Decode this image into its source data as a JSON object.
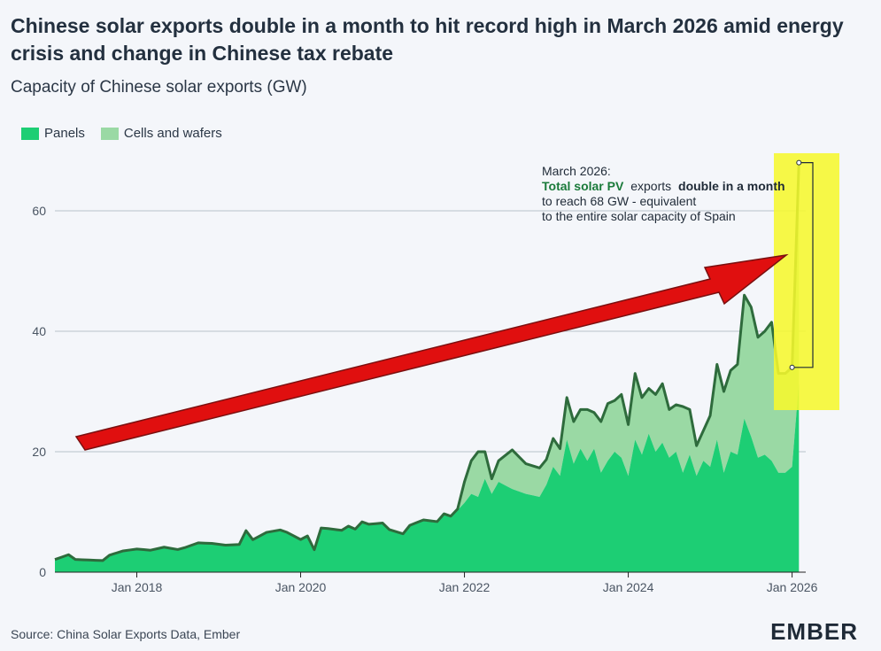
{
  "header": {
    "title": "Chinese solar exports double in a month to hit record high in March 2026 amid energy crisis and change in Chinese tax rebate",
    "subtitle": "Capacity of Chinese solar exports (GW)"
  },
  "footer": {
    "source": "Source: China Solar Exports Data, Ember",
    "logo": "EMBER"
  },
  "colors": {
    "panels": "#1dce74",
    "cells_and_wafers": "#9ad9a4",
    "total_line": "#2e6b3c",
    "highlight": "#f6f82d",
    "arrow": "#e00f0f",
    "annotation_accent": "#1a7a3a",
    "grid": "#b9c1cb"
  },
  "chart_data": {
    "type": "area",
    "title": "Capacity of Chinese solar exports (GW)",
    "ylabel": "",
    "ylim": [
      0,
      70
    ],
    "yticks": [
      0,
      20,
      40,
      60
    ],
    "xlim": [
      "2017-01",
      "2026-03"
    ],
    "xticks": [
      {
        "date": "2018-01",
        "label": "Jan 2018"
      },
      {
        "date": "2020-01",
        "label": "Jan 2020"
      },
      {
        "date": "2022-01",
        "label": "Jan 2022"
      },
      {
        "date": "2024-01",
        "label": "Jan 2024"
      },
      {
        "date": "2026-01",
        "label": "Jan 2026"
      }
    ],
    "legend": "top-left",
    "grid": true,
    "stacked": true,
    "series": [
      {
        "name": "Panels",
        "points": [
          [
            "2017-01",
            2.1
          ],
          [
            "2017-03",
            2.9
          ],
          [
            "2017-04",
            2.1
          ],
          [
            "2017-06",
            2.0
          ],
          [
            "2017-08",
            1.9
          ],
          [
            "2017-09",
            2.8
          ],
          [
            "2017-11",
            3.5
          ],
          [
            "2018-01",
            3.8
          ],
          [
            "2018-03",
            3.6
          ],
          [
            "2018-05",
            4.1
          ],
          [
            "2018-07",
            3.7
          ],
          [
            "2018-08",
            4.0
          ],
          [
            "2018-10",
            4.8
          ],
          [
            "2018-12",
            4.7
          ],
          [
            "2019-02",
            4.4
          ],
          [
            "2019-04",
            4.5
          ],
          [
            "2019-05",
            6.8
          ],
          [
            "2019-06",
            5.3
          ],
          [
            "2019-08",
            6.5
          ],
          [
            "2019-10",
            6.9
          ],
          [
            "2019-11",
            6.5
          ],
          [
            "2020-01",
            5.3
          ],
          [
            "2020-02",
            5.9
          ],
          [
            "2020-03",
            3.6
          ],
          [
            "2020-04",
            7.2
          ],
          [
            "2020-05",
            7.1
          ],
          [
            "2020-07",
            6.8
          ],
          [
            "2020-08",
            7.5
          ],
          [
            "2020-09",
            7.0
          ],
          [
            "2020-10",
            8.2
          ],
          [
            "2020-11",
            7.8
          ],
          [
            "2021-01",
            8.0
          ],
          [
            "2021-02",
            6.9
          ],
          [
            "2021-04",
            6.2
          ],
          [
            "2021-05",
            7.6
          ],
          [
            "2021-07",
            8.5
          ],
          [
            "2021-09",
            8.2
          ],
          [
            "2021-10",
            9.5
          ],
          [
            "2021-11",
            9.1
          ],
          [
            "2021-12",
            10.3
          ],
          [
            "2022-01",
            11.5
          ],
          [
            "2022-02",
            13.0
          ],
          [
            "2022-03",
            12.5
          ],
          [
            "2022-04",
            15.5
          ],
          [
            "2022-05",
            13.0
          ],
          [
            "2022-06",
            15.0
          ],
          [
            "2022-08",
            13.8
          ],
          [
            "2022-10",
            13.0
          ],
          [
            "2022-12",
            12.5
          ],
          [
            "2023-01",
            14.5
          ],
          [
            "2023-02",
            17.5
          ],
          [
            "2023-03",
            16.0
          ],
          [
            "2023-04",
            22.0
          ],
          [
            "2023-05",
            18.0
          ],
          [
            "2023-06",
            20.5
          ],
          [
            "2023-07",
            18.5
          ],
          [
            "2023-08",
            20.5
          ],
          [
            "2023-09",
            16.5
          ],
          [
            "2023-10",
            18.5
          ],
          [
            "2023-11",
            20.0
          ],
          [
            "2023-12",
            19.0
          ],
          [
            "2024-01",
            16.0
          ],
          [
            "2024-02",
            22.0
          ],
          [
            "2024-03",
            19.5
          ],
          [
            "2024-04",
            23.0
          ],
          [
            "2024-05",
            20.0
          ],
          [
            "2024-06",
            21.5
          ],
          [
            "2024-07",
            19.0
          ],
          [
            "2024-08",
            20.0
          ],
          [
            "2024-09",
            16.5
          ],
          [
            "2024-10",
            19.5
          ],
          [
            "2024-11",
            16.0
          ],
          [
            "2024-12",
            18.5
          ],
          [
            "2025-01",
            17.5
          ],
          [
            "2025-02",
            22.0
          ],
          [
            "2025-03",
            16.5
          ],
          [
            "2025-04",
            20.0
          ],
          [
            "2025-05",
            19.5
          ],
          [
            "2025-06",
            25.5
          ],
          [
            "2025-07",
            22.5
          ],
          [
            "2025-08",
            19.0
          ],
          [
            "2025-09",
            19.5
          ],
          [
            "2025-10",
            18.5
          ],
          [
            "2025-11",
            16.5
          ],
          [
            "2025-12",
            16.5
          ],
          [
            "2026-01",
            17.5
          ],
          [
            "2026-02",
            31.5
          ]
        ]
      },
      {
        "name": "Cells and wafers",
        "points": [
          [
            "2017-01",
            0
          ],
          [
            "2021-12",
            0.2
          ],
          [
            "2022-01",
            3.5
          ],
          [
            "2022-02",
            5.5
          ],
          [
            "2022-03",
            7.5
          ],
          [
            "2022-04",
            4.5
          ],
          [
            "2022-05",
            2.5
          ],
          [
            "2022-06",
            3.5
          ],
          [
            "2022-08",
            6.5
          ],
          [
            "2022-10",
            5.0
          ],
          [
            "2022-12",
            4.8
          ],
          [
            "2023-01",
            4.2
          ],
          [
            "2023-02",
            4.7
          ],
          [
            "2023-03",
            4.5
          ],
          [
            "2023-04",
            7.0
          ],
          [
            "2023-05",
            7.0
          ],
          [
            "2023-06",
            6.5
          ],
          [
            "2023-07",
            8.5
          ],
          [
            "2023-08",
            6.0
          ],
          [
            "2023-09",
            8.5
          ],
          [
            "2023-10",
            9.5
          ],
          [
            "2023-11",
            8.5
          ],
          [
            "2023-12",
            10.5
          ],
          [
            "2024-01",
            8.5
          ],
          [
            "2024-02",
            11.0
          ],
          [
            "2024-03",
            9.5
          ],
          [
            "2024-04",
            7.5
          ],
          [
            "2024-05",
            9.5
          ],
          [
            "2024-06",
            9.8
          ],
          [
            "2024-07",
            8.0
          ],
          [
            "2024-08",
            7.8
          ],
          [
            "2024-09",
            11.0
          ],
          [
            "2024-10",
            7.5
          ],
          [
            "2024-11",
            5.0
          ],
          [
            "2024-12",
            5.0
          ],
          [
            "2025-01",
            8.5
          ],
          [
            "2025-02",
            12.5
          ],
          [
            "2025-03",
            13.5
          ],
          [
            "2025-04",
            13.5
          ],
          [
            "2025-05",
            15.0
          ],
          [
            "2025-06",
            20.5
          ],
          [
            "2025-07",
            21.5
          ],
          [
            "2025-08",
            20.0
          ],
          [
            "2025-09",
            20.5
          ],
          [
            "2025-10",
            23.0
          ],
          [
            "2025-11",
            16.5
          ],
          [
            "2025-12",
            16.5
          ],
          [
            "2026-01",
            16.5
          ],
          [
            "2026-02",
            36.5
          ]
        ]
      }
    ],
    "highlight_points": [
      {
        "date": "2026-01",
        "value": 34
      },
      {
        "date": "2026-02",
        "value": 68
      }
    ],
    "annotation": {
      "date_label": "March 2026:",
      "accent_text": "Total solar PV",
      "text_1": "exports",
      "bold_text": "double in a month",
      "text_2": "to reach 68 GW - equivalent to the entire solar capacity of Spain"
    }
  }
}
